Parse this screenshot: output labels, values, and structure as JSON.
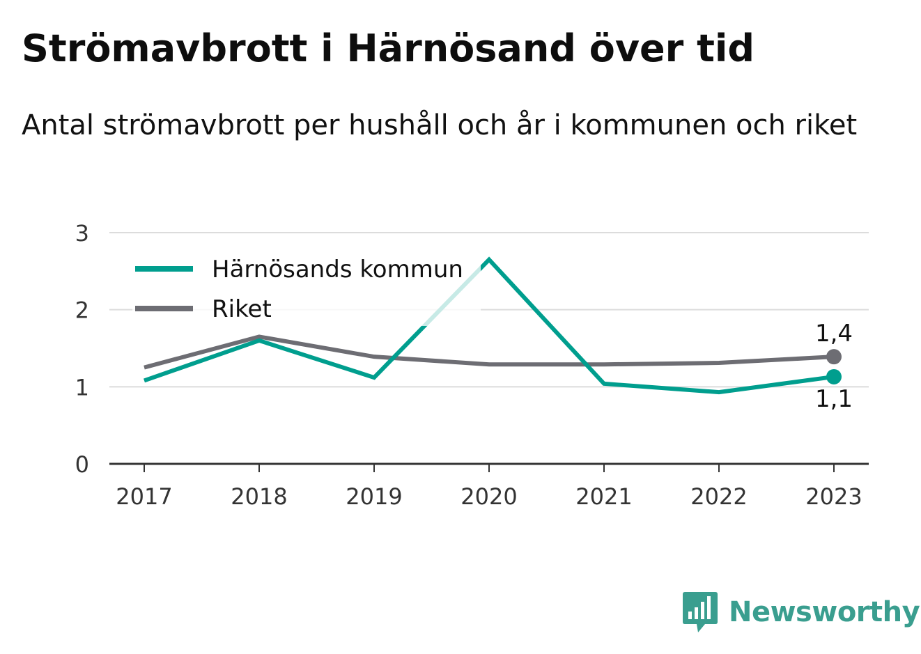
{
  "title": "Strömavbrott i Härnösand över tid",
  "subtitle": "Antal strömavbrott per hushåll och år i kommunen och riket",
  "brand": {
    "name": "Newsworthy",
    "icon": "bar-chart-speech-bubble-icon"
  },
  "colors": {
    "municipality": "#009e8e",
    "country": "#6d6d73",
    "grid": "#dcdcdc",
    "axis": "#333333"
  },
  "chart_data": {
    "type": "line",
    "x": [
      "2017",
      "2018",
      "2019",
      "2020",
      "2021",
      "2022",
      "2023"
    ],
    "ylim": [
      0,
      3
    ],
    "yticks": [
      "0",
      "1",
      "2",
      "3"
    ],
    "grid": true,
    "legend": "top-left",
    "series": [
      {
        "name": "Härnösands kommun",
        "color": "#009e8e",
        "values": [
          1.08,
          1.6,
          1.12,
          2.65,
          1.04,
          0.93,
          1.13
        ],
        "end_label": "1,1"
      },
      {
        "name": "Riket",
        "color": "#6d6d73",
        "values": [
          1.25,
          1.65,
          1.39,
          1.29,
          1.29,
          1.31,
          1.39
        ],
        "end_label": "1,4"
      }
    ]
  }
}
